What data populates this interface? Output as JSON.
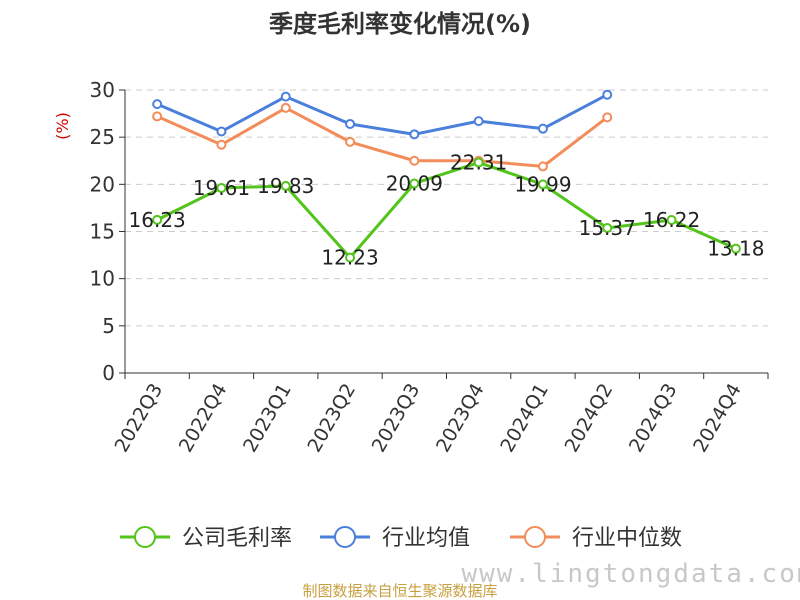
{
  "chart_data": {
    "type": "line",
    "title": "季度毛利率变化情况(%)",
    "ylabel": "(%)",
    "xlabel": "",
    "ylim": [
      0,
      30
    ],
    "yticks": [
      0,
      5,
      10,
      15,
      20,
      25,
      30
    ],
    "categories": [
      "2022Q3",
      "2022Q4",
      "2023Q1",
      "2023Q2",
      "2023Q3",
      "2023Q4",
      "2024Q1",
      "2024Q2",
      "2024Q3",
      "2024Q4"
    ],
    "grid": "horizontal-dashed",
    "legend_position": "bottom",
    "series": [
      {
        "name": "公司毛利率",
        "color": "#52c41a",
        "values": [
          16.23,
          19.61,
          19.83,
          12.23,
          20.09,
          22.31,
          19.99,
          15.37,
          16.22,
          13.18
        ],
        "labels": [
          "16.23",
          "19.61",
          "19.83",
          "12.23",
          "20.09",
          "22.31",
          "19.99",
          "15.37",
          "16.22",
          "13.18"
        ]
      },
      {
        "name": "行业均值",
        "color": "#4a7fdc",
        "values": [
          28.5,
          25.6,
          29.3,
          26.4,
          25.3,
          26.7,
          25.9,
          29.5,
          null,
          null
        ]
      },
      {
        "name": "行业中位数",
        "color": "#f28c5a",
        "values": [
          27.2,
          24.2,
          28.1,
          24.5,
          22.5,
          22.5,
          21.9,
          27.1,
          null,
          null
        ]
      }
    ]
  },
  "watermark": "www.lingtongdata.com",
  "source": "制图数据来自恒生聚源数据库"
}
